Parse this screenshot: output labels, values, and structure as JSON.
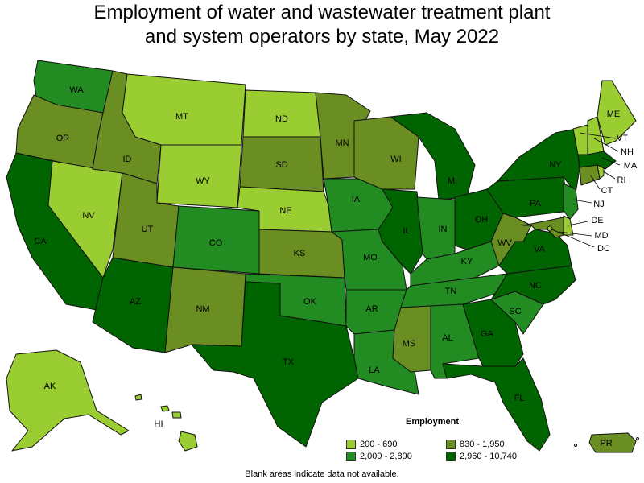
{
  "title_line1": "Employment of water and wastewater treatment plant",
  "title_line2": "and system operators by state, May 2022",
  "legend": {
    "title": "Employment",
    "bins": [
      {
        "label": "200 - 690",
        "color": "#9acd32"
      },
      {
        "label": "2,000 - 2,890",
        "color": "#228b22"
      },
      {
        "label": "830 - 1,950",
        "color": "#6b8e23"
      },
      {
        "label": "2,960 - 10,740",
        "color": "#006400"
      }
    ]
  },
  "footnote": "Blank areas indicate data not available.",
  "states": {
    "WA": 1,
    "OR": 2,
    "CA": 3,
    "NV": 0,
    "ID": 2,
    "MT": 0,
    "WY": 0,
    "UT": 2,
    "AZ": 3,
    "CO": 1,
    "NM": 2,
    "ND": 0,
    "SD": 2,
    "NE": 0,
    "KS": 2,
    "OK": 1,
    "TX": 3,
    "MN": 2,
    "IA": 1,
    "MO": 1,
    "AR": 1,
    "LA": 1,
    "WI": 2,
    "IL": 3,
    "MI": 3,
    "IN": 1,
    "OH": 3,
    "KY": 1,
    "TN": 1,
    "MS": 2,
    "AL": 1,
    "GA": 3,
    "FL": 3,
    "SC": 1,
    "NC": 3,
    "VA": 3,
    "WV": 2,
    "PA": 3,
    "NY": 3,
    "NJ": 1,
    "DE": 0,
    "MD": 2,
    "DC": 0,
    "CT": 2,
    "RI": 0,
    "MA": 3,
    "VT": 0,
    "NH": 0,
    "ME": 0,
    "AK": 0,
    "HI": 0,
    "PR": 2
  }
}
